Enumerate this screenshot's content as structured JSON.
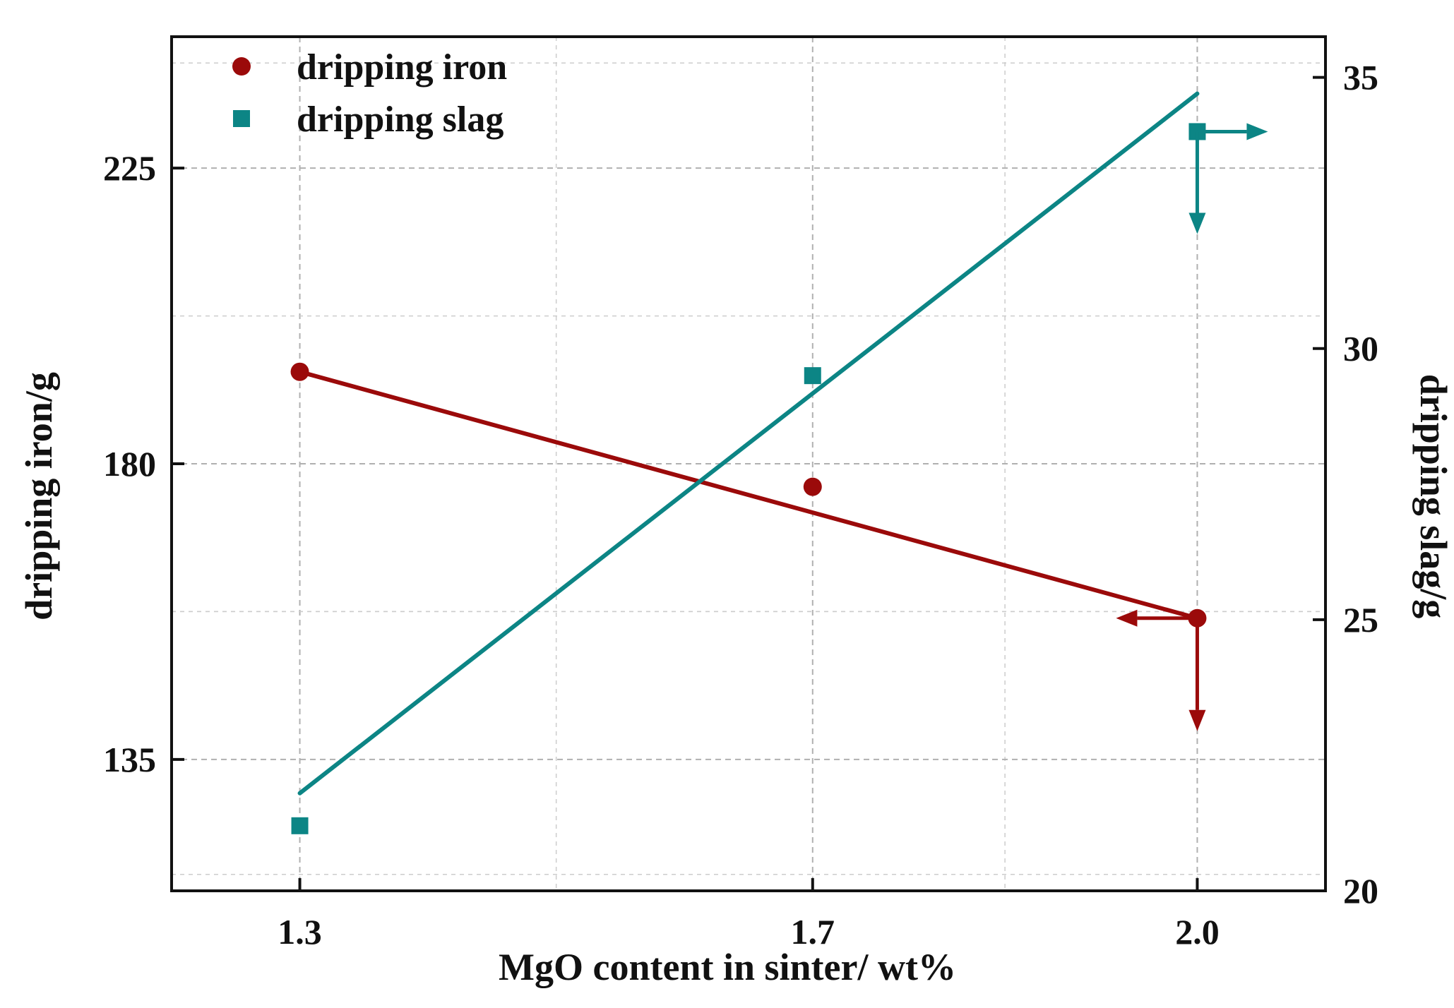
{
  "chart_data": {
    "type": "scatter",
    "title": "",
    "xlabel": "MgO content in sinter/ wt%",
    "ylabel_left": "dripping iron/g",
    "ylabel_right": "dripping slag/g",
    "x_tick_labels": [
      "1.3",
      "1.7",
      "2.0"
    ],
    "x_tick_values": [
      1.3,
      1.7,
      2.0
    ],
    "xlim": [
      1.2,
      2.1
    ],
    "y_left_ticks": [
      135,
      180,
      225
    ],
    "y_left_tick_labels": [
      "135",
      "180",
      "225"
    ],
    "ylim_left": [
      115,
      245
    ],
    "y_right_ticks": [
      20,
      25,
      30,
      35
    ],
    "y_right_tick_labels": [
      "20",
      "25",
      "30",
      "35"
    ],
    "ylim_right": [
      20,
      35.75
    ],
    "grid": true,
    "legend_position": "top-left",
    "series": [
      {
        "name": "dripping iron",
        "axis": "left",
        "marker": "circle",
        "color": "#9b0a0a",
        "x": [
          1.3,
          1.7,
          2.0
        ],
        "values": [
          194,
          176.5,
          156.5
        ],
        "fit_line": [
          [
            1.3,
            194
          ],
          [
            2.0,
            156.5
          ]
        ]
      },
      {
        "name": "dripping slag",
        "axis": "right",
        "marker": "square",
        "color": "#0c8585",
        "x": [
          1.3,
          1.7,
          2.0
        ],
        "values": [
          21.2,
          29.5,
          34.0
        ],
        "fit_line": [
          [
            1.3,
            21.8
          ],
          [
            2.0,
            34.7
          ]
        ]
      }
    ]
  }
}
